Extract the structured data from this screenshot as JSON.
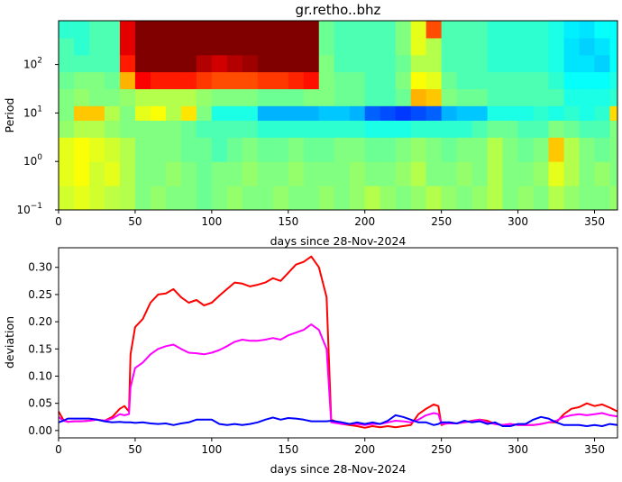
{
  "chart_data": [
    {
      "type": "heatmap",
      "title": "gr.retho..bhz",
      "xlabel": "days since 28-Nov-2024",
      "ylabel": "Period",
      "xlim": [
        0,
        365
      ],
      "ylim": [
        0.1,
        800
      ],
      "yscale": "log",
      "colormap": "jet",
      "xticks": [
        "0",
        "50",
        "100",
        "150",
        "200",
        "250",
        "300",
        "350"
      ],
      "yticks": [
        {
          "base": "10",
          "exp": "−1"
        },
        {
          "base": "10",
          "exp": "0"
        },
        {
          "base": "10",
          "exp": "1"
        },
        {
          "base": "10",
          "exp": "2"
        }
      ],
      "x_bin_days": 10,
      "log10_period_edges": [
        -1,
        -0.5,
        0,
        0.5,
        0.85,
        1.15,
        1.5,
        1.85,
        2.2,
        2.55,
        2.9
      ],
      "rows_bottom_to_top": [
        [
          0.58,
          0.6,
          0.58,
          0.56,
          0.55,
          0.5,
          0.52,
          0.5,
          0.5,
          0.48,
          0.5,
          0.52,
          0.5,
          0.5,
          0.52,
          0.5,
          0.5,
          0.52,
          0.5,
          0.52,
          0.55,
          0.52,
          0.5,
          0.52,
          0.55,
          0.52,
          0.5,
          0.52,
          0.55,
          0.5,
          0.52,
          0.5,
          0.55,
          0.52,
          0.5,
          0.5,
          0.52
        ],
        [
          0.6,
          0.62,
          0.58,
          0.6,
          0.55,
          0.5,
          0.5,
          0.52,
          0.5,
          0.48,
          0.5,
          0.5,
          0.52,
          0.5,
          0.5,
          0.52,
          0.5,
          0.5,
          0.5,
          0.52,
          0.5,
          0.5,
          0.52,
          0.55,
          0.5,
          0.5,
          0.52,
          0.5,
          0.55,
          0.5,
          0.5,
          0.52,
          0.6,
          0.55,
          0.5,
          0.52,
          0.5
        ],
        [
          0.6,
          0.62,
          0.6,
          0.58,
          0.55,
          0.5,
          0.5,
          0.5,
          0.48,
          0.48,
          0.45,
          0.48,
          0.5,
          0.48,
          0.48,
          0.5,
          0.48,
          0.48,
          0.5,
          0.5,
          0.48,
          0.48,
          0.5,
          0.52,
          0.5,
          0.48,
          0.5,
          0.5,
          0.55,
          0.5,
          0.48,
          0.5,
          0.68,
          0.55,
          0.5,
          0.48,
          0.5
        ],
        [
          0.52,
          0.55,
          0.55,
          0.52,
          0.5,
          0.5,
          0.5,
          0.5,
          0.48,
          0.45,
          0.45,
          0.45,
          0.45,
          0.42,
          0.42,
          0.42,
          0.42,
          0.42,
          0.42,
          0.42,
          0.4,
          0.4,
          0.4,
          0.42,
          0.42,
          0.42,
          0.42,
          0.45,
          0.48,
          0.48,
          0.45,
          0.45,
          0.5,
          0.48,
          0.45,
          0.45,
          0.5
        ],
        [
          0.5,
          0.68,
          0.68,
          0.55,
          0.5,
          0.6,
          0.62,
          0.55,
          0.65,
          0.5,
          0.4,
          0.4,
          0.4,
          0.3,
          0.3,
          0.3,
          0.3,
          0.32,
          0.32,
          0.3,
          0.22,
          0.2,
          0.18,
          0.2,
          0.22,
          0.3,
          0.32,
          0.32,
          0.4,
          0.4,
          0.4,
          0.42,
          0.4,
          0.42,
          0.4,
          0.42,
          0.66
        ],
        [
          0.5,
          0.52,
          0.5,
          0.5,
          0.52,
          0.55,
          0.55,
          0.55,
          0.55,
          0.52,
          0.5,
          0.5,
          0.5,
          0.48,
          0.48,
          0.48,
          0.5,
          0.5,
          0.48,
          0.48,
          0.45,
          0.45,
          0.48,
          0.7,
          0.68,
          0.5,
          0.48,
          0.48,
          0.45,
          0.45,
          0.45,
          0.45,
          0.45,
          0.4,
          0.4,
          0.4,
          0.42
        ],
        [
          0.48,
          0.5,
          0.5,
          0.48,
          0.7,
          0.88,
          0.85,
          0.85,
          0.85,
          0.82,
          0.8,
          0.8,
          0.8,
          0.82,
          0.82,
          0.84,
          0.86,
          0.5,
          0.48,
          0.48,
          0.45,
          0.45,
          0.5,
          0.62,
          0.6,
          0.48,
          0.45,
          0.45,
          0.45,
          0.45,
          0.45,
          0.45,
          0.42,
          0.38,
          0.38,
          0.38,
          0.4
        ],
        [
          0.45,
          0.45,
          0.45,
          0.45,
          0.85,
          1.0,
          1.0,
          1.0,
          1.0,
          0.95,
          0.92,
          0.95,
          0.97,
          1.0,
          1.0,
          1.0,
          1.0,
          0.5,
          0.45,
          0.45,
          0.45,
          0.45,
          0.48,
          0.55,
          0.55,
          0.45,
          0.45,
          0.45,
          0.42,
          0.42,
          0.42,
          0.42,
          0.4,
          0.35,
          0.35,
          0.33,
          0.38
        ],
        [
          0.45,
          0.42,
          0.45,
          0.45,
          0.9,
          1.0,
          1.0,
          1.0,
          1.0,
          1.0,
          1.0,
          1.0,
          1.0,
          1.0,
          1.0,
          1.0,
          1.0,
          0.48,
          0.45,
          0.45,
          0.45,
          0.45,
          0.5,
          0.6,
          0.55,
          0.45,
          0.45,
          0.45,
          0.42,
          0.42,
          0.42,
          0.42,
          0.4,
          0.35,
          0.33,
          0.35,
          0.38
        ],
        [
          0.42,
          0.42,
          0.45,
          0.45,
          0.9,
          1.0,
          1.0,
          1.0,
          1.0,
          1.0,
          1.0,
          1.0,
          1.0,
          1.0,
          1.0,
          1.0,
          1.0,
          0.48,
          0.45,
          0.45,
          0.45,
          0.45,
          0.5,
          0.6,
          0.8,
          0.45,
          0.45,
          0.45,
          0.42,
          0.42,
          0.42,
          0.42,
          0.4,
          0.36,
          0.35,
          0.38,
          0.38
        ]
      ]
    },
    {
      "type": "line",
      "xlabel": "days since 28-Nov-2024",
      "ylabel": "deviation",
      "xlim": [
        0,
        365
      ],
      "ylim": [
        -0.0135,
        0.336
      ],
      "xticks": [
        "0",
        "50",
        "100",
        "150",
        "200",
        "250",
        "300",
        "350"
      ],
      "yticks": [
        "0.00",
        "0.05",
        "0.10",
        "0.15",
        "0.20",
        "0.25",
        "0.30"
      ],
      "x": [
        0,
        3,
        6,
        10,
        15,
        20,
        25,
        30,
        35,
        40,
        43,
        46,
        47,
        50,
        55,
        60,
        65,
        70,
        75,
        80,
        85,
        90,
        95,
        100,
        105,
        110,
        115,
        120,
        125,
        130,
        135,
        140,
        145,
        150,
        155,
        160,
        165,
        170,
        175,
        178,
        185,
        190,
        195,
        200,
        205,
        210,
        215,
        220,
        225,
        230,
        235,
        240,
        245,
        248,
        250,
        255,
        260,
        265,
        270,
        275,
        280,
        285,
        290,
        295,
        300,
        305,
        310,
        315,
        320,
        325,
        330,
        335,
        340,
        345,
        350,
        355,
        360,
        365
      ],
      "series": [
        {
          "color": "#ff0000",
          "values": [
            0.035,
            0.02,
            0.016,
            0.017,
            0.017,
            0.018,
            0.02,
            0.018,
            0.025,
            0.04,
            0.045,
            0.035,
            0.14,
            0.19,
            0.205,
            0.235,
            0.25,
            0.252,
            0.26,
            0.245,
            0.235,
            0.24,
            0.23,
            0.235,
            0.248,
            0.26,
            0.272,
            0.27,
            0.265,
            0.268,
            0.272,
            0.28,
            0.275,
            0.29,
            0.305,
            0.31,
            0.32,
            0.3,
            0.245,
            0.02,
            0.012,
            0.01,
            0.008,
            0.005,
            0.008,
            0.006,
            0.008,
            0.006,
            0.008,
            0.01,
            0.03,
            0.04,
            0.048,
            0.045,
            0.01,
            0.015,
            0.013,
            0.015,
            0.018,
            0.02,
            0.018,
            0.012,
            0.01,
            0.012,
            0.01,
            0.01,
            0.01,
            0.012,
            0.015,
            0.015,
            0.03,
            0.04,
            0.043,
            0.05,
            0.045,
            0.048,
            0.042,
            0.035
          ]
        },
        {
          "color": "#ff00ff",
          "values": [
            0.025,
            0.018,
            0.016,
            0.017,
            0.017,
            0.018,
            0.02,
            0.018,
            0.022,
            0.03,
            0.028,
            0.03,
            0.08,
            0.115,
            0.125,
            0.14,
            0.15,
            0.155,
            0.158,
            0.15,
            0.143,
            0.142,
            0.14,
            0.143,
            0.148,
            0.155,
            0.163,
            0.167,
            0.165,
            0.165,
            0.167,
            0.17,
            0.167,
            0.175,
            0.18,
            0.185,
            0.195,
            0.185,
            0.15,
            0.015,
            0.012,
            0.012,
            0.012,
            0.01,
            0.012,
            0.012,
            0.015,
            0.018,
            0.017,
            0.015,
            0.02,
            0.028,
            0.032,
            0.03,
            0.012,
            0.013,
            0.013,
            0.015,
            0.017,
            0.02,
            0.015,
            0.012,
            0.01,
            0.012,
            0.01,
            0.01,
            0.01,
            0.012,
            0.015,
            0.018,
            0.025,
            0.028,
            0.03,
            0.028,
            0.03,
            0.032,
            0.028,
            0.026
          ]
        },
        {
          "color": "#0000ff",
          "values": [
            0.015,
            0.018,
            0.022,
            0.022,
            0.022,
            0.022,
            0.02,
            0.017,
            0.015,
            0.016,
            0.015,
            0.015,
            0.015,
            0.014,
            0.015,
            0.013,
            0.012,
            0.013,
            0.01,
            0.013,
            0.015,
            0.02,
            0.02,
            0.02,
            0.012,
            0.01,
            0.012,
            0.01,
            0.012,
            0.015,
            0.02,
            0.024,
            0.02,
            0.023,
            0.022,
            0.02,
            0.017,
            0.017,
            0.017,
            0.018,
            0.015,
            0.012,
            0.015,
            0.012,
            0.015,
            0.012,
            0.018,
            0.028,
            0.025,
            0.02,
            0.015,
            0.015,
            0.01,
            0.012,
            0.015,
            0.015,
            0.013,
            0.018,
            0.015,
            0.017,
            0.012,
            0.015,
            0.008,
            0.008,
            0.012,
            0.012,
            0.02,
            0.025,
            0.022,
            0.015,
            0.01,
            0.01,
            0.01,
            0.008,
            0.01,
            0.008,
            0.012,
            0.01
          ]
        }
      ]
    }
  ]
}
